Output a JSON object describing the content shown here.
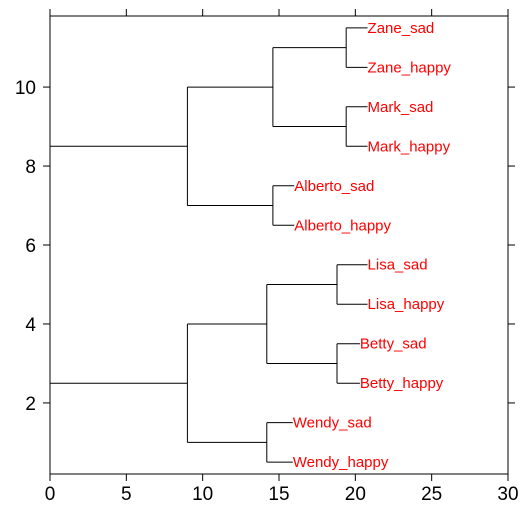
{
  "chart_data": {
    "type": "dendrogram",
    "title": "",
    "xlabel": "",
    "ylabel": "",
    "xlim": [
      0,
      30
    ],
    "ylim": [
      0.2,
      11.8
    ],
    "xticks": [
      0,
      5,
      10,
      15,
      20,
      25,
      30
    ],
    "xtick_labels": [
      "0",
      "5",
      "10",
      "15",
      "20",
      "25",
      "30"
    ],
    "yticks": [
      2,
      4,
      6,
      8,
      10
    ],
    "ytick_labels": [
      "2",
      "4",
      "6",
      "8",
      "10"
    ],
    "grid": false,
    "leaf_label_color": "#ff0000",
    "line_color": "#000000",
    "leaves": [
      {
        "label": "Zane_sad",
        "x": 20.8,
        "y": 11.5
      },
      {
        "label": "Zane_happy",
        "x": 20.8,
        "y": 10.5
      },
      {
        "label": "Mark_sad",
        "x": 20.8,
        "y": 9.5
      },
      {
        "label": "Mark_happy",
        "x": 20.8,
        "y": 8.5
      },
      {
        "label": "Alberto_sad",
        "x": 16.0,
        "y": 7.5
      },
      {
        "label": "Alberto_happy",
        "x": 16.0,
        "y": 6.5
      },
      {
        "label": "Lisa_sad",
        "x": 20.8,
        "y": 5.5
      },
      {
        "label": "Lisa_happy",
        "x": 20.8,
        "y": 4.5
      },
      {
        "label": "Betty_sad",
        "x": 20.3,
        "y": 3.5
      },
      {
        "label": "Betty_happy",
        "x": 20.3,
        "y": 2.5
      },
      {
        "label": "Wendy_sad",
        "x": 15.9,
        "y": 1.5
      },
      {
        "label": "Wendy_happy",
        "x": 15.9,
        "y": 0.5
      }
    ],
    "merges": [
      {
        "x": 19.4,
        "y_top": 11.5,
        "y_bottom": 10.5,
        "children": [
          {
            "kind": "leaf",
            "index": 0
          },
          {
            "kind": "leaf",
            "index": 1
          }
        ]
      },
      {
        "x": 19.4,
        "y_top": 9.5,
        "y_bottom": 8.5,
        "children": [
          {
            "kind": "leaf",
            "index": 2
          },
          {
            "kind": "leaf",
            "index": 3
          }
        ]
      },
      {
        "x": 14.6,
        "y_top": 11.0,
        "y_bottom": 9.0,
        "children": [
          {
            "kind": "merge",
            "index": 0
          },
          {
            "kind": "merge",
            "index": 1
          }
        ]
      },
      {
        "x": 14.6,
        "y_top": 7.5,
        "y_bottom": 6.5,
        "children": [
          {
            "kind": "leaf",
            "index": 4
          },
          {
            "kind": "leaf",
            "index": 5
          }
        ]
      },
      {
        "x": 9.0,
        "y_top": 10.0,
        "y_bottom": 7.0,
        "children": [
          {
            "kind": "merge",
            "index": 2
          },
          {
            "kind": "merge",
            "index": 3
          }
        ]
      },
      {
        "x": 18.8,
        "y_top": 5.5,
        "y_bottom": 4.5,
        "children": [
          {
            "kind": "leaf",
            "index": 6
          },
          {
            "kind": "leaf",
            "index": 7
          }
        ]
      },
      {
        "x": 18.8,
        "y_top": 3.5,
        "y_bottom": 2.5,
        "children": [
          {
            "kind": "leaf",
            "index": 8
          },
          {
            "kind": "leaf",
            "index": 9
          }
        ]
      },
      {
        "x": 14.2,
        "y_top": 5.0,
        "y_bottom": 3.0,
        "children": [
          {
            "kind": "merge",
            "index": 5
          },
          {
            "kind": "merge",
            "index": 6
          }
        ]
      },
      {
        "x": 14.2,
        "y_top": 1.5,
        "y_bottom": 0.5,
        "children": [
          {
            "kind": "leaf",
            "index": 10
          },
          {
            "kind": "leaf",
            "index": 11
          }
        ]
      },
      {
        "x": 9.0,
        "y_top": 4.0,
        "y_bottom": 1.0,
        "children": [
          {
            "kind": "merge",
            "index": 7
          },
          {
            "kind": "merge",
            "index": 8
          }
        ]
      },
      {
        "x": 0.0,
        "y_top": 8.5,
        "y_bottom": 2.5,
        "children": [
          {
            "kind": "merge",
            "index": 4
          },
          {
            "kind": "merge",
            "index": 9
          }
        ]
      }
    ]
  }
}
